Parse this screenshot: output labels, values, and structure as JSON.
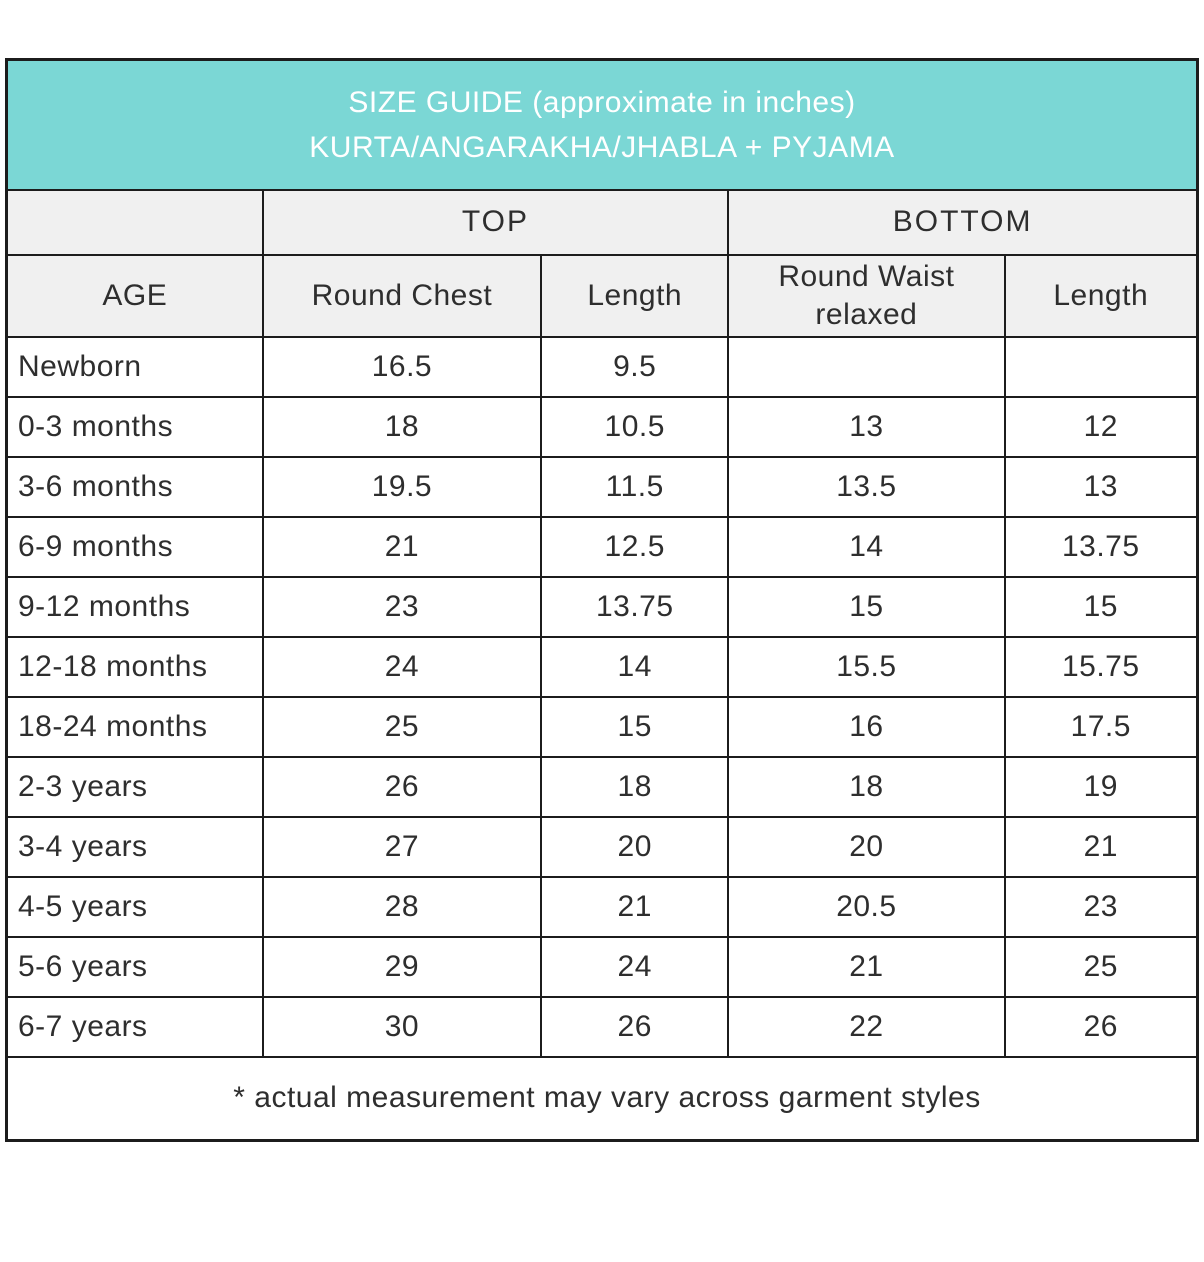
{
  "colors": {
    "banner_teal": "#7bd7d5",
    "banner_text": "#ffffff",
    "header_gray": "#f0f0f0",
    "border": "#1c1c1c",
    "text": "#2e2e2e"
  },
  "title": {
    "line1": "SIZE GUIDE (approximate in inches)",
    "line2": "KURTA/ANGARAKHA/JHABLA + PYJAMA"
  },
  "table": {
    "group_headers": {
      "top": "TOP",
      "bottom": "BOTTOM"
    },
    "column_headers": [
      "AGE",
      "Round Chest",
      "Length",
      "Round Waist relaxed",
      "Length"
    ],
    "rows": [
      [
        "Newborn",
        "16.5",
        "9.5",
        "",
        ""
      ],
      [
        "0-3 months",
        "18",
        "10.5",
        "13",
        "12"
      ],
      [
        "3-6 months",
        "19.5",
        "11.5",
        "13.5",
        "13"
      ],
      [
        "6-9 months",
        "21",
        "12.5",
        "14",
        "13.75"
      ],
      [
        "9-12 months",
        "23",
        "13.75",
        "15",
        "15"
      ],
      [
        "12-18 months",
        "24",
        "14",
        "15.5",
        "15.75"
      ],
      [
        "18-24 months",
        "25",
        "15",
        "16",
        "17.5"
      ],
      [
        "2-3 years",
        "26",
        "18",
        "18",
        "19"
      ],
      [
        "3-4 years",
        "27",
        "20",
        "20",
        "21"
      ],
      [
        "4-5 years",
        "28",
        "21",
        "20.5",
        "23"
      ],
      [
        "5-6 years",
        "29",
        "24",
        "21",
        "25"
      ],
      [
        "6-7 years",
        "30",
        "26",
        "22",
        "26"
      ]
    ],
    "footnote": "* actual measurement may vary across garment styles"
  },
  "chart_data": {
    "type": "table",
    "title": "SIZE GUIDE (approximate in inches) KURTA/ANGARAKHA/JHABLA + PYJAMA",
    "column_groups": [
      "",
      "TOP",
      "TOP",
      "BOTTOM",
      "BOTTOM"
    ],
    "columns": [
      "AGE",
      "Round Chest",
      "Length",
      "Round Waist relaxed",
      "Length"
    ],
    "rows": [
      [
        "Newborn",
        16.5,
        9.5,
        null,
        null
      ],
      [
        "0-3 months",
        18,
        10.5,
        13,
        12
      ],
      [
        "3-6 months",
        19.5,
        11.5,
        13.5,
        13
      ],
      [
        "6-9 months",
        21,
        12.5,
        14,
        13.75
      ],
      [
        "9-12 months",
        23,
        13.75,
        15,
        15
      ],
      [
        "12-18 months",
        24,
        14,
        15.5,
        15.75
      ],
      [
        "18-24 months",
        25,
        15,
        16,
        17.5
      ],
      [
        "2-3 years",
        26,
        18,
        18,
        19
      ],
      [
        "3-4 years",
        27,
        20,
        20,
        21
      ],
      [
        "4-5 years",
        28,
        21,
        20.5,
        23
      ],
      [
        "5-6 years",
        29,
        24,
        21,
        25
      ],
      [
        "6-7 years",
        30,
        26,
        22,
        26
      ]
    ],
    "footnote": "* actual measurement may vary across garment styles",
    "units": "inches"
  }
}
